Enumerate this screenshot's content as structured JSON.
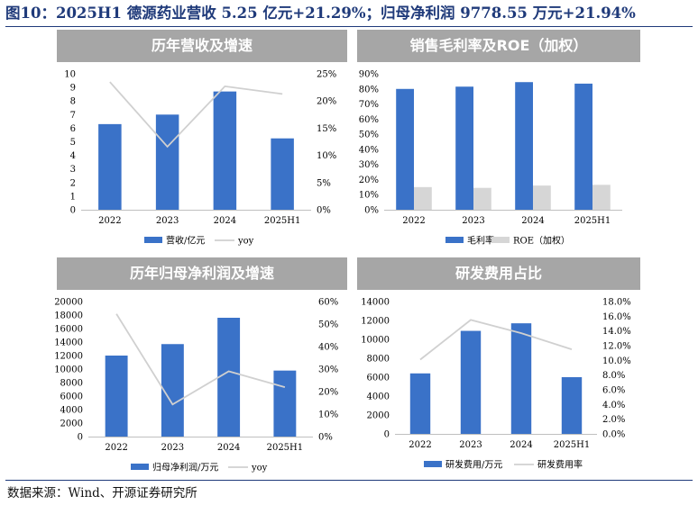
{
  "figure": {
    "title": "图10：2025H1 德源药业营收 5.25 亿元+21.29%；归母净利润 9778.55 万元+21.94%",
    "source": "数据来源：Wind、开源证券研究所"
  },
  "colors": {
    "bar": "#3a72c8",
    "bar_gray": "#d6d6d6",
    "line": "#d0d0d0",
    "header_bg": "#a6a6a6",
    "title_color": "#1f3a7a"
  },
  "chart_data": [
    {
      "type": "bar",
      "title": "历年营收及增速",
      "categories": [
        "2022",
        "2023",
        "2024",
        "2025H1"
      ],
      "series": [
        {
          "name": "营收/亿元",
          "kind": "bar",
          "axis": "left",
          "values": [
            6.3,
            7.0,
            8.7,
            5.25
          ]
        },
        {
          "name": "yoy",
          "kind": "line",
          "axis": "right",
          "values": [
            23.5,
            11.6,
            22.7,
            21.29
          ]
        }
      ],
      "ylim": [
        0,
        10
      ],
      "yticks": [
        "0",
        "1",
        "2",
        "3",
        "4",
        "5",
        "6",
        "7",
        "8",
        "9",
        "10"
      ],
      "y2lim": [
        0,
        25
      ],
      "y2ticks": [
        "0%",
        "5%",
        "10%",
        "15%",
        "20%",
        "25%"
      ],
      "legend_position": "bottom"
    },
    {
      "type": "bar",
      "title": "销售毛利率及ROE（加权）",
      "categories": [
        "2022",
        "2023",
        "2024",
        "2025H1"
      ],
      "series": [
        {
          "name": "毛利率",
          "kind": "bar",
          "axis": "left",
          "color": "#3a72c8",
          "values": [
            80,
            81.5,
            84.5,
            83.5
          ]
        },
        {
          "name": "ROE（加权）",
          "kind": "bar",
          "axis": "left",
          "color": "#d6d6d6",
          "values": [
            15,
            14.5,
            16,
            16.5
          ]
        }
      ],
      "ylim": [
        0,
        90
      ],
      "yticks": [
        "0%",
        "10%",
        "20%",
        "30%",
        "40%",
        "50%",
        "60%",
        "70%",
        "80%",
        "90%"
      ],
      "legend_position": "bottom"
    },
    {
      "type": "bar",
      "title": "历年归母净利润及增速",
      "categories": [
        "2022",
        "2023",
        "2024",
        "2025H1"
      ],
      "series": [
        {
          "name": "归母净利润/万元",
          "kind": "bar",
          "axis": "left",
          "values": [
            12000,
            13700,
            17600,
            9778.55
          ]
        },
        {
          "name": "yoy",
          "kind": "line",
          "axis": "right",
          "values": [
            54.5,
            14.3,
            29.0,
            21.94
          ]
        }
      ],
      "ylim": [
        0,
        20000
      ],
      "yticks": [
        "0",
        "2000",
        "4000",
        "6000",
        "8000",
        "10000",
        "12000",
        "14000",
        "16000",
        "18000",
        "20000"
      ],
      "y2lim": [
        0,
        60
      ],
      "y2ticks": [
        "0%",
        "10%",
        "20%",
        "30%",
        "40%",
        "50%",
        "60%"
      ],
      "legend_position": "bottom"
    },
    {
      "type": "bar",
      "title": "研发费用占比",
      "categories": [
        "2022",
        "2023",
        "2024",
        "2025H1"
      ],
      "series": [
        {
          "name": "研发费用/万元",
          "kind": "bar",
          "axis": "left",
          "values": [
            6400,
            10900,
            11700,
            6000
          ]
        },
        {
          "name": "研发费用率",
          "kind": "line",
          "axis": "right",
          "values": [
            10.1,
            15.5,
            13.7,
            11.5
          ]
        }
      ],
      "ylim": [
        0,
        14000
      ],
      "yticks": [
        "0",
        "2000",
        "4000",
        "6000",
        "8000",
        "10000",
        "12000",
        "14000"
      ],
      "y2lim": [
        0,
        18
      ],
      "y2ticks": [
        "0.0%",
        "2.0%",
        "4.0%",
        "6.0%",
        "8.0%",
        "10.0%",
        "12.0%",
        "14.0%",
        "16.0%",
        "18.0%"
      ],
      "legend_position": "bottom"
    }
  ]
}
